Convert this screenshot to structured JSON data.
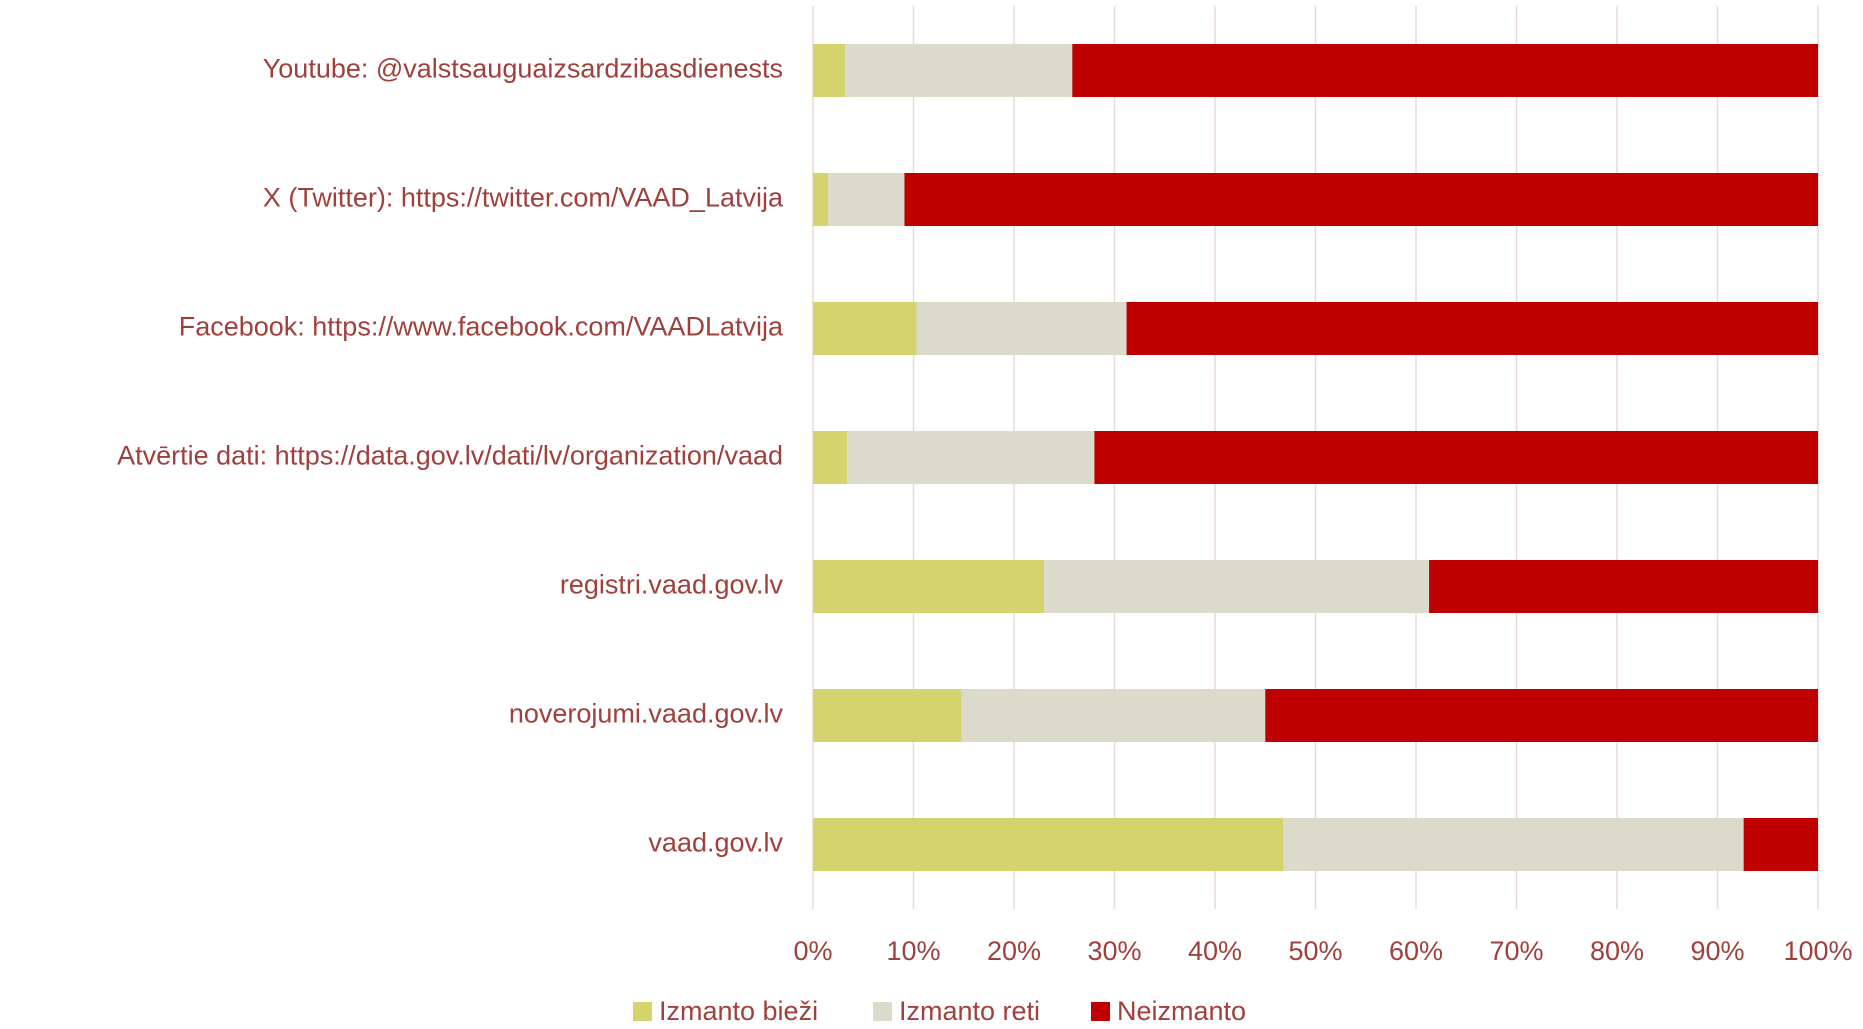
{
  "chart_data": {
    "type": "stacked_bar_horizontal",
    "categories": [
      "Youtube: @valstsauguaizsardzibasdienests",
      "X (Twitter): https://twitter.com/VAAD_Latvija",
      "Facebook: https://www.facebook.com/VAADLatvija",
      "Atvērtie dati: https://data.gov.lv/dati/lv/organization/vaad",
      "registri.vaad.gov.lv",
      "noverojumi.vaad.gov.lv",
      "vaad.gov.lv"
    ],
    "series": [
      {
        "name": "Izmanto bieži",
        "color": "#d4d36e",
        "values": [
          3.2,
          1.5,
          10.3,
          3.4,
          23.0,
          14.8,
          46.8
        ]
      },
      {
        "name": "Izmanto reti",
        "color": "#dcdacb",
        "values": [
          22.6,
          7.6,
          20.9,
          24.6,
          38.3,
          30.2,
          45.8
        ]
      },
      {
        "name": "Neizmanto",
        "color": "#c00000",
        "values": [
          74.2,
          90.9,
          68.8,
          72.0,
          38.7,
          55.0,
          7.4
        ]
      }
    ],
    "xlim": [
      0,
      100
    ],
    "xticks": [
      {
        "value": 0,
        "label": "0%"
      },
      {
        "value": 10,
        "label": "10%"
      },
      {
        "value": 20,
        "label": "20%"
      },
      {
        "value": 30,
        "label": "30%"
      },
      {
        "value": 40,
        "label": "40%"
      },
      {
        "value": 50,
        "label": "50%"
      },
      {
        "value": 60,
        "label": "60%"
      },
      {
        "value": 70,
        "label": "70%"
      },
      {
        "value": 80,
        "label": "80%"
      },
      {
        "value": 90,
        "label": "90%"
      },
      {
        "value": 100,
        "label": "100%"
      }
    ],
    "grid": true,
    "legend": "bottom"
  }
}
